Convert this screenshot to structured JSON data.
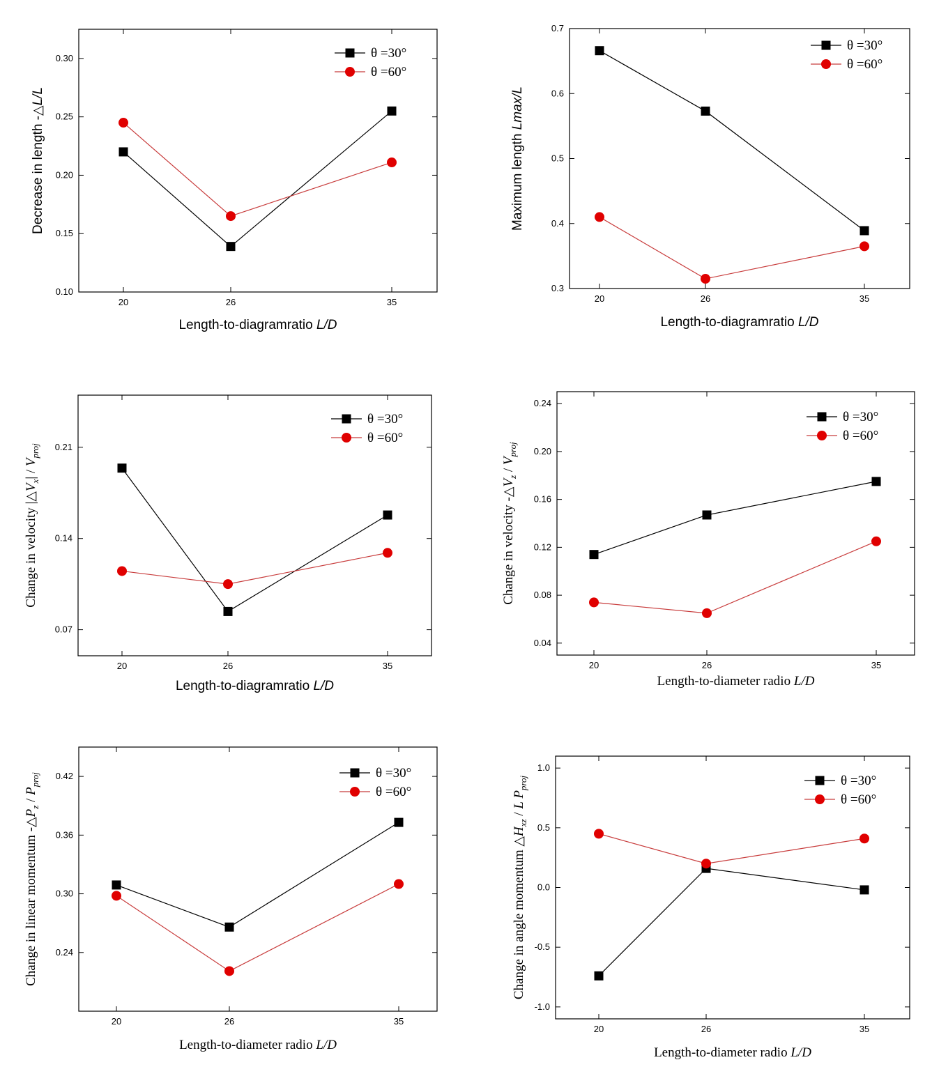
{
  "colors": {
    "theta30": "#000000",
    "theta60": "#e00000",
    "theta60_line": "#c83c3c",
    "axis": "#000000"
  },
  "legend": [
    "θ =30°",
    "θ =60°"
  ],
  "chart_data": [
    {
      "type": "line",
      "categories": [
        "20",
        "26",
        "35"
      ],
      "series": [
        {
          "name": "θ =30°",
          "values": [
            0.22,
            0.139,
            0.255
          ]
        },
        {
          "name": "θ =60°",
          "values": [
            0.245,
            0.165,
            0.211
          ]
        }
      ],
      "ylabel": "Decrease in length -△L/L",
      "xlabel": "Length-to-diagramratio L/D",
      "ylim": [
        0.1,
        0.325
      ],
      "yticks": [
        "0.10",
        "0.15",
        "0.20",
        "0.25",
        "0.30"
      ],
      "legend_position": "top-right"
    },
    {
      "type": "line",
      "categories": [
        "20",
        "26",
        "35"
      ],
      "series": [
        {
          "name": "θ =30°",
          "values": [
            0.666,
            0.573,
            0.389
          ]
        },
        {
          "name": "θ =60°",
          "values": [
            0.41,
            0.315,
            0.365
          ]
        }
      ],
      "ylabel": "Maximum length Lmax/L",
      "xlabel": "Length-to-diagramratio L/D",
      "ylim": [
        0.3,
        0.7
      ],
      "yticks": [
        "0.3",
        "0.4",
        "0.5",
        "0.6",
        "0.7"
      ],
      "legend_position": "top-right"
    },
    {
      "type": "line",
      "categories": [
        "20",
        "26",
        "35"
      ],
      "series": [
        {
          "name": "θ =30°",
          "values": [
            0.194,
            0.084,
            0.158
          ]
        },
        {
          "name": "θ =60°",
          "values": [
            0.115,
            0.105,
            0.129
          ]
        }
      ],
      "ylabel": "Change in velocity |△Vx| / Vproj",
      "xlabel": "Length-to-diagramratio L/D",
      "ylim": [
        0.05,
        0.25
      ],
      "yticks": [
        "0.07",
        "0.14",
        "0.21"
      ],
      "legend_position": "top-right"
    },
    {
      "type": "line",
      "categories": [
        "20",
        "26",
        "35"
      ],
      "series": [
        {
          "name": "θ =30°",
          "values": [
            0.114,
            0.147,
            0.175
          ]
        },
        {
          "name": "θ =60°",
          "values": [
            0.074,
            0.065,
            0.125
          ]
        }
      ],
      "ylabel": "Change in velocity -△Vz / Vproj",
      "xlabel": "Length-to-diameter radio L/D",
      "ylim": [
        0.03,
        0.25
      ],
      "yticks": [
        "0.04",
        "0.08",
        "0.12",
        "0.16",
        "0.20",
        "0.24"
      ],
      "legend_position": "top-right"
    },
    {
      "type": "line",
      "categories": [
        "20",
        "26",
        "35"
      ],
      "series": [
        {
          "name": "θ =30°",
          "values": [
            0.309,
            0.266,
            0.373
          ]
        },
        {
          "name": "θ =60°",
          "values": [
            0.298,
            0.221,
            0.31
          ]
        }
      ],
      "ylabel": "Change in linear momentum -△Pz / Pproj",
      "xlabel": "Length-to-diameter radio L/D",
      "ylim": [
        0.18,
        0.45
      ],
      "yticks": [
        "0.24",
        "0.30",
        "0.36",
        "0.42"
      ],
      "legend_position": "top-right"
    },
    {
      "type": "line",
      "categories": [
        "20",
        "26",
        "35"
      ],
      "series": [
        {
          "name": "θ =30°",
          "values": [
            -0.74,
            0.16,
            -0.02
          ]
        },
        {
          "name": "θ =60°",
          "values": [
            0.45,
            0.2,
            0.41
          ]
        }
      ],
      "ylabel": "Change in angle momentum △Hxz / L Pproj",
      "xlabel": "Length-to-diameter radio L/D",
      "ylim": [
        -1.1,
        1.1
      ],
      "yticks": [
        "-1.0",
        "-0.5",
        "0.0",
        "0.5",
        "1.0"
      ],
      "legend_position": "top-right"
    }
  ]
}
